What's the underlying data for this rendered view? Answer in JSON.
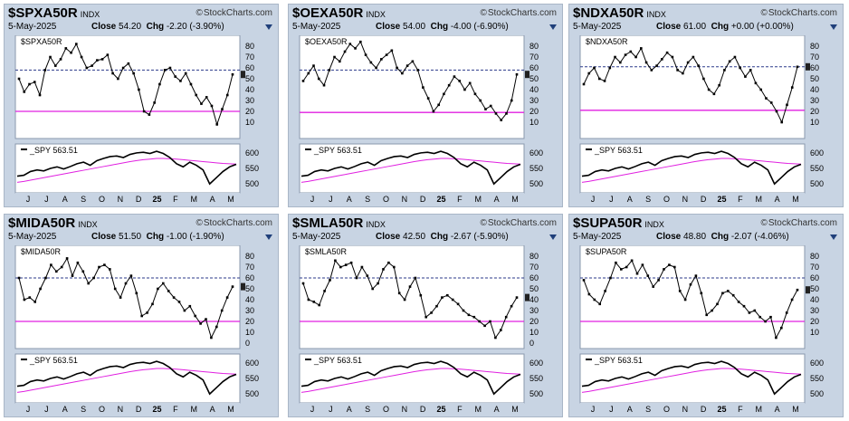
{
  "panels": [
    {
      "symbol": "$SPXA50R",
      "exchange": "INDX",
      "date": "5-May-2025",
      "close_label": "Close",
      "close": "54.20",
      "chg_label": "Chg",
      "chg": "-2.20 (-3.90%)",
      "inner_label": "$SPXA50R"
    },
    {
      "symbol": "$OEXA50R",
      "exchange": "INDX",
      "date": "5-May-2025",
      "close_label": "Close",
      "close": "54.00",
      "chg_label": "Chg",
      "chg": "-4.00 (-6.90%)",
      "inner_label": "$OEXA50R"
    },
    {
      "symbol": "$NDXA50R",
      "exchange": "INDX",
      "date": "5-May-2025",
      "close_label": "Close",
      "close": "61.00",
      "chg_label": "Chg",
      "chg": "+0.00 (+0.00%)",
      "inner_label": "$NDXA50R"
    },
    {
      "symbol": "$MIDA50R",
      "exchange": "INDX",
      "date": "5-May-2025",
      "close_label": "Close",
      "close": "51.50",
      "chg_label": "Chg",
      "chg": "-1.00 (-1.90%)",
      "inner_label": "$MIDA50R"
    },
    {
      "symbol": "$SMLA50R",
      "exchange": "INDX",
      "date": "5-May-2025",
      "close_label": "Close",
      "close": "42.50",
      "chg_label": "Chg",
      "chg": "-2.67 (-5.90%)",
      "inner_label": "$SMLA50R"
    },
    {
      "symbol": "$SUPA50R",
      "exchange": "INDX",
      "date": "5-May-2025",
      "close_label": "Close",
      "close": "48.80",
      "chg_label": "Chg",
      "chg": "-2.07 (-4.06%)",
      "inner_label": "$SUPA50R"
    }
  ],
  "brand": "StockCharts.com",
  "colors": {
    "panel_bg": "#c8d4e3",
    "threshold_line": "#e020e0",
    "ref_line": "#2b3a8a",
    "series": "#000000"
  },
  "icons": [
    "trash-icon",
    "chevron-down-icon",
    "copyright-icon"
  ],
  "chart_data": [
    {
      "type": "line",
      "title": "$SPXA50R",
      "ylim": [
        0,
        85
      ],
      "yticks": [
        10,
        20,
        30,
        40,
        50,
        60,
        70,
        80
      ],
      "last": 54.2,
      "y": [
        50,
        38,
        45,
        47,
        35,
        58,
        70,
        62,
        68,
        78,
        74,
        82,
        70,
        60,
        62,
        67,
        68,
        72,
        55,
        50,
        60,
        64,
        55,
        40,
        20,
        17,
        28,
        45,
        58,
        60,
        52,
        48,
        55,
        45,
        35,
        27,
        33,
        25,
        8,
        22,
        35,
        54
      ],
      "hlines": [
        {
          "value": 20,
          "color": "#e020e0"
        },
        {
          "value": 58,
          "color": "#2b3a8a",
          "dashed": true
        }
      ],
      "lower": {
        "label": "_SPY 563.51",
        "ylim": [
          480,
          620
        ],
        "yticks": [
          500,
          550,
          600
        ],
        "spy": [
          525,
          528,
          540,
          545,
          542,
          550,
          555,
          548,
          556,
          565,
          570,
          560,
          575,
          582,
          588,
          590,
          585,
          595,
          600,
          602,
          598,
          605,
          598,
          585,
          565,
          555,
          570,
          560,
          545,
          500,
          520,
          540,
          555,
          563
        ],
        "ma": [
          505,
          508,
          512,
          516,
          520,
          524,
          528,
          532,
          536,
          540,
          544,
          548,
          552,
          556,
          560,
          564,
          568,
          572,
          575,
          578,
          580,
          582,
          582,
          581,
          580,
          578,
          576,
          574,
          572,
          570,
          568,
          566,
          565,
          564
        ]
      },
      "xticks": [
        "J",
        "J",
        "A",
        "S",
        "O",
        "N",
        "D",
        "25",
        "F",
        "M",
        "A",
        "M"
      ]
    },
    {
      "type": "line",
      "title": "$OEXA50R",
      "ylim": [
        0,
        85
      ],
      "yticks": [
        10,
        20,
        30,
        40,
        50,
        60,
        70,
        80
      ],
      "last": 54.0,
      "y": [
        48,
        55,
        62,
        50,
        44,
        58,
        70,
        66,
        75,
        82,
        78,
        84,
        72,
        65,
        60,
        68,
        72,
        76,
        60,
        55,
        62,
        66,
        58,
        42,
        32,
        20,
        26,
        36,
        44,
        52,
        48,
        40,
        46,
        36,
        30,
        22,
        25,
        18,
        12,
        18,
        30,
        54
      ],
      "hlines": [
        {
          "value": 19,
          "color": "#e020e0"
        },
        {
          "value": 58,
          "color": "#2b3a8a",
          "dashed": true
        }
      ],
      "lower": {
        "label": "_SPY 563.51",
        "ylim": [
          480,
          620
        ],
        "yticks": [
          500,
          550,
          600
        ],
        "spy": [
          525,
          528,
          540,
          545,
          542,
          550,
          555,
          548,
          556,
          565,
          570,
          560,
          575,
          582,
          588,
          590,
          585,
          595,
          600,
          602,
          598,
          605,
          598,
          585,
          565,
          555,
          570,
          560,
          545,
          500,
          520,
          540,
          555,
          563
        ],
        "ma": [
          505,
          508,
          512,
          516,
          520,
          524,
          528,
          532,
          536,
          540,
          544,
          548,
          552,
          556,
          560,
          564,
          568,
          572,
          575,
          578,
          580,
          582,
          582,
          581,
          580,
          578,
          576,
          574,
          572,
          570,
          568,
          566,
          565,
          564
        ]
      },
      "xticks": [
        "J",
        "J",
        "A",
        "S",
        "O",
        "N",
        "D",
        "25",
        "F",
        "M",
        "A",
        "M"
      ]
    },
    {
      "type": "line",
      "title": "$NDXA50R",
      "ylim": [
        0,
        85
      ],
      "yticks": [
        10,
        20,
        30,
        40,
        50,
        60,
        70,
        80
      ],
      "last": 61.0,
      "y": [
        45,
        55,
        60,
        50,
        48,
        60,
        70,
        65,
        72,
        75,
        70,
        78,
        65,
        58,
        62,
        68,
        74,
        70,
        58,
        55,
        65,
        70,
        62,
        50,
        40,
        36,
        44,
        58,
        66,
        70,
        60,
        52,
        58,
        46,
        40,
        32,
        28,
        20,
        10,
        26,
        42,
        61
      ],
      "hlines": [
        {
          "value": 21,
          "color": "#e020e0"
        },
        {
          "value": 61,
          "color": "#2b3a8a",
          "dashed": true
        }
      ],
      "lower": {
        "label": "_SPY 563.51",
        "ylim": [
          480,
          620
        ],
        "yticks": [
          500,
          550,
          600
        ],
        "spy": [
          525,
          528,
          540,
          545,
          542,
          550,
          555,
          548,
          556,
          565,
          570,
          560,
          575,
          582,
          588,
          590,
          585,
          595,
          600,
          602,
          598,
          605,
          598,
          585,
          565,
          555,
          570,
          560,
          545,
          500,
          520,
          540,
          555,
          563
        ],
        "ma": [
          505,
          508,
          512,
          516,
          520,
          524,
          528,
          532,
          536,
          540,
          544,
          548,
          552,
          556,
          560,
          564,
          568,
          572,
          575,
          578,
          580,
          582,
          582,
          581,
          580,
          578,
          576,
          574,
          572,
          570,
          568,
          566,
          565,
          564
        ]
      },
      "xticks": [
        "J",
        "J",
        "A",
        "S",
        "O",
        "N",
        "D",
        "25",
        "F",
        "M",
        "A",
        "M"
      ]
    },
    {
      "type": "line",
      "title": "$MIDA50R",
      "ylim": [
        0,
        85
      ],
      "yticks": [
        0,
        10,
        20,
        30,
        40,
        50,
        60,
        70,
        80
      ],
      "last": 51.5,
      "y": [
        60,
        40,
        42,
        38,
        50,
        60,
        72,
        66,
        70,
        78,
        62,
        74,
        66,
        55,
        60,
        70,
        72,
        68,
        50,
        42,
        55,
        62,
        46,
        25,
        28,
        36,
        50,
        55,
        48,
        42,
        38,
        30,
        34,
        25,
        18,
        22,
        5,
        15,
        30,
        42,
        52
      ],
      "hlines": [
        {
          "value": 20,
          "color": "#e020e0"
        },
        {
          "value": 60,
          "color": "#2b3a8a",
          "dashed": true
        }
      ],
      "lower": {
        "label": "_SPY 563.51",
        "ylim": [
          480,
          620
        ],
        "yticks": [
          500,
          550,
          600
        ],
        "spy": [
          525,
          528,
          540,
          545,
          542,
          550,
          555,
          548,
          556,
          565,
          570,
          560,
          575,
          582,
          588,
          590,
          585,
          595,
          600,
          602,
          598,
          605,
          598,
          585,
          565,
          555,
          570,
          560,
          545,
          500,
          520,
          540,
          555,
          563
        ],
        "ma": [
          505,
          508,
          512,
          516,
          520,
          524,
          528,
          532,
          536,
          540,
          544,
          548,
          552,
          556,
          560,
          564,
          568,
          572,
          575,
          578,
          580,
          582,
          582,
          581,
          580,
          578,
          576,
          574,
          572,
          570,
          568,
          566,
          565,
          564
        ]
      },
      "xticks": [
        "J",
        "J",
        "A",
        "S",
        "O",
        "N",
        "D",
        "25",
        "F",
        "M",
        "A",
        "M"
      ]
    },
    {
      "type": "line",
      "title": "$SMLA50R",
      "ylim": [
        0,
        85
      ],
      "yticks": [
        0,
        10,
        20,
        30,
        40,
        50,
        60,
        70,
        80
      ],
      "last": 42.5,
      "y": [
        55,
        40,
        38,
        35,
        48,
        58,
        76,
        70,
        72,
        74,
        60,
        70,
        62,
        50,
        55,
        68,
        74,
        70,
        46,
        40,
        52,
        60,
        44,
        24,
        28,
        34,
        42,
        44,
        40,
        36,
        30,
        26,
        24,
        20,
        16,
        20,
        5,
        12,
        24,
        34,
        42
      ],
      "hlines": [
        {
          "value": 20,
          "color": "#e020e0"
        },
        {
          "value": 60,
          "color": "#2b3a8a",
          "dashed": true
        }
      ],
      "lower": {
        "label": "_SPY 563.51",
        "ylim": [
          480,
          620
        ],
        "yticks": [
          500,
          550,
          600
        ],
        "spy": [
          525,
          528,
          540,
          545,
          542,
          550,
          555,
          548,
          556,
          565,
          570,
          560,
          575,
          582,
          588,
          590,
          585,
          595,
          600,
          602,
          598,
          605,
          598,
          585,
          565,
          555,
          570,
          560,
          545,
          500,
          520,
          540,
          555,
          563
        ],
        "ma": [
          505,
          508,
          512,
          516,
          520,
          524,
          528,
          532,
          536,
          540,
          544,
          548,
          552,
          556,
          560,
          564,
          568,
          572,
          575,
          578,
          580,
          582,
          582,
          581,
          580,
          578,
          576,
          574,
          572,
          570,
          568,
          566,
          565,
          564
        ]
      },
      "xticks": [
        "J",
        "J",
        "A",
        "S",
        "O",
        "N",
        "D",
        "25",
        "F",
        "M",
        "A",
        "M"
      ]
    },
    {
      "type": "line",
      "title": "$SUPA50R",
      "ylim": [
        0,
        85
      ],
      "yticks": [
        10,
        20,
        30,
        40,
        50,
        60,
        70,
        80
      ],
      "last": 48.8,
      "y": [
        58,
        45,
        40,
        36,
        48,
        60,
        74,
        68,
        70,
        76,
        64,
        72,
        62,
        52,
        58,
        68,
        72,
        70,
        48,
        40,
        54,
        62,
        46,
        26,
        30,
        36,
        46,
        48,
        44,
        38,
        34,
        28,
        30,
        24,
        20,
        24,
        5,
        14,
        28,
        40,
        49
      ],
      "hlines": [
        {
          "value": 20,
          "color": "#e020e0"
        },
        {
          "value": 60,
          "color": "#2b3a8a",
          "dashed": true
        }
      ],
      "lower": {
        "label": "_SPY 563.51",
        "ylim": [
          480,
          620
        ],
        "yticks": [
          500,
          550,
          600
        ],
        "spy": [
          525,
          528,
          540,
          545,
          542,
          550,
          555,
          548,
          556,
          565,
          570,
          560,
          575,
          582,
          588,
          590,
          585,
          595,
          600,
          602,
          598,
          605,
          598,
          585,
          565,
          555,
          570,
          560,
          545,
          500,
          520,
          540,
          555,
          563
        ],
        "ma": [
          505,
          508,
          512,
          516,
          520,
          524,
          528,
          532,
          536,
          540,
          544,
          548,
          552,
          556,
          560,
          564,
          568,
          572,
          575,
          578,
          580,
          582,
          582,
          581,
          580,
          578,
          576,
          574,
          572,
          570,
          568,
          566,
          565,
          564
        ]
      },
      "xticks": [
        "J",
        "J",
        "A",
        "S",
        "O",
        "N",
        "D",
        "25",
        "F",
        "M",
        "A",
        "M"
      ]
    }
  ]
}
